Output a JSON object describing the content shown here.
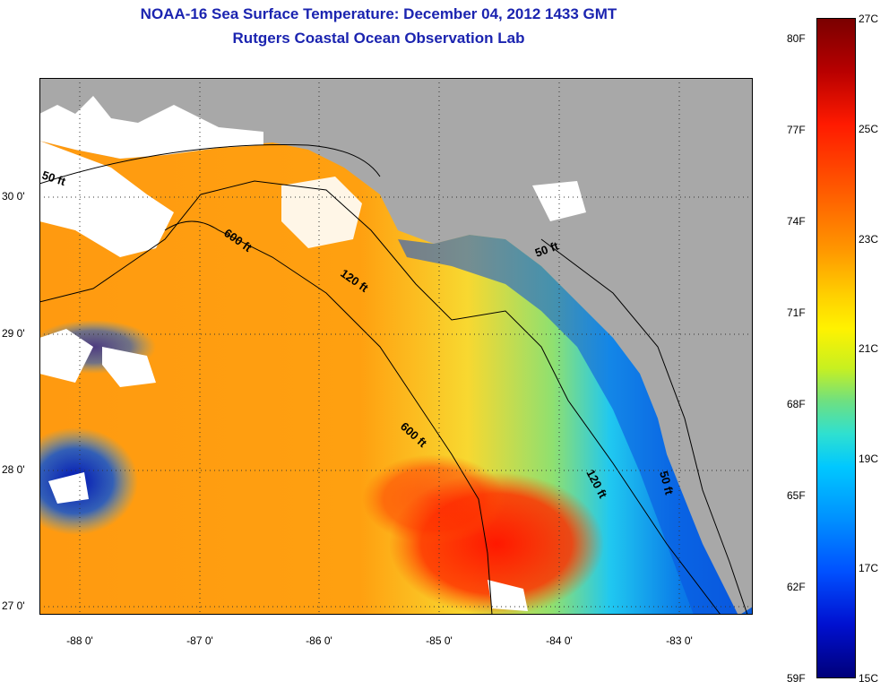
{
  "title_line1": "NOAA-16 Sea Surface Temperature:  December 04, 2012 1433 GMT",
  "title_line2": "Rutgers Coastal Ocean Observation Lab",
  "lat_labels": [
    "30 0'",
    "29 0'",
    "28 0'",
    "27 0'"
  ],
  "lon_labels": [
    "-88 0'",
    "-87 0'",
    "-86 0'",
    "-85 0'",
    "-84 0'",
    "-83 0'"
  ],
  "contour_labels": {
    "c50_west": "50 ft",
    "c600_north": "600 ft",
    "c120_north": "120 ft",
    "c50_east": "50 ft",
    "c600_south": "600 ft",
    "c120_south": "120 ft",
    "c50_south": "50 ft"
  },
  "colorbar": {
    "fahrenheit": [
      "80F",
      "77F",
      "74F",
      "71F",
      "68F",
      "65F",
      "62F",
      "59F"
    ],
    "celsius": [
      "27C",
      "25C",
      "23C",
      "21C",
      "19C",
      "17C",
      "15C"
    ]
  },
  "colors": {
    "title": "#1b24b0",
    "land": "#a8a8a8",
    "cloud": "#ffffff",
    "warm": "#ff3a00",
    "mid": "#ffa000",
    "cool": "#00b8ff",
    "cold": "#0020c8"
  }
}
